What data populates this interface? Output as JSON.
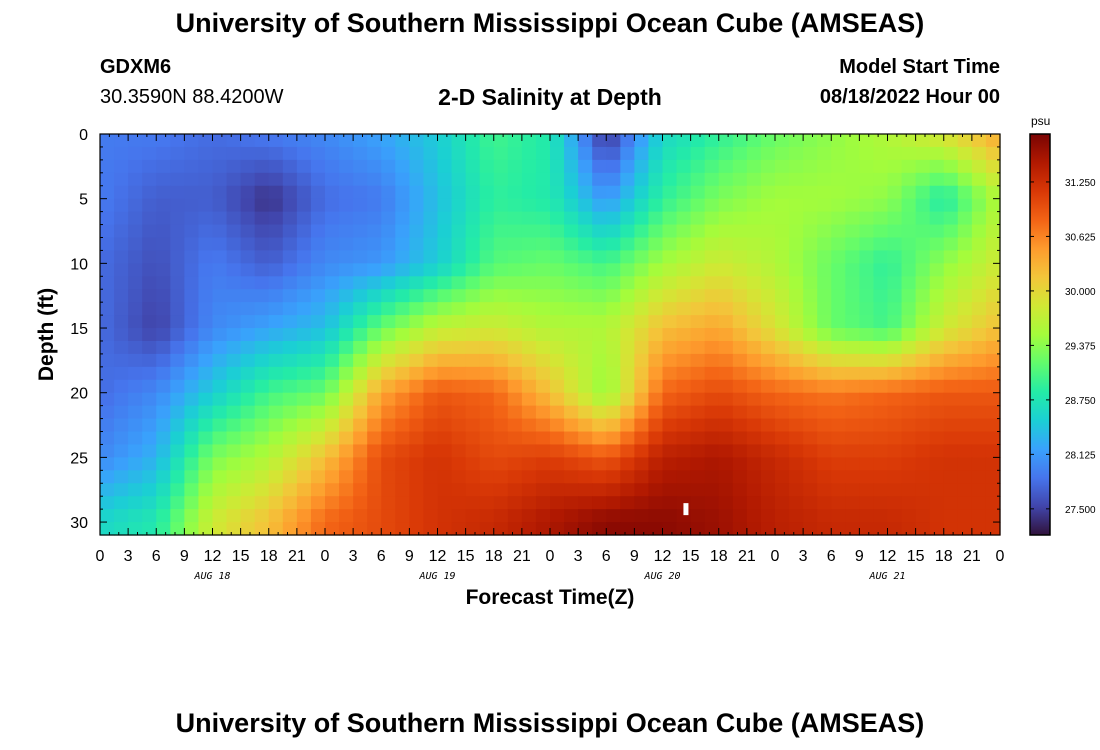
{
  "page": {
    "title_top": "University of Southern Mississippi Ocean Cube (AMSEAS)",
    "title_bottom": "University of Southern Mississippi Ocean Cube (AMSEAS)",
    "station": "GDXM6",
    "coords": "30.3590N  88.4200W",
    "plot_title": "2-D Salinity at Depth",
    "start_label": "Model Start Time",
    "start_value": "08/18/2022 Hour 00"
  },
  "chart_data": {
    "type": "heatmap",
    "title": "2-D Salinity at Depth",
    "xlabel": "Forecast Time(Z)",
    "ylabel": "Depth (ft)",
    "colorbar_unit": "psu",
    "xlim_hours": [
      0,
      96
    ],
    "ylim": [
      0,
      31
    ],
    "y_reversed": true,
    "xticks": [
      "0",
      "3",
      "6",
      "9",
      "12",
      "15",
      "18",
      "21",
      "0",
      "3",
      "6",
      "9",
      "12",
      "15",
      "18",
      "21",
      "0",
      "3",
      "6",
      "9",
      "12",
      "15",
      "18",
      "21",
      "0",
      "3",
      "6",
      "9",
      "12",
      "15",
      "18",
      "21",
      "0"
    ],
    "day_labels": [
      "AUG 18",
      "AUG 19",
      "AUG 20",
      "AUG 21"
    ],
    "yticks": [
      0,
      5,
      10,
      15,
      20,
      25,
      30
    ],
    "colorbar_ticks": [
      "31.250",
      "30.625",
      "30.000",
      "29.375",
      "28.750",
      "28.125",
      "27.500"
    ],
    "colorbar_values": [
      31.25,
      30.625,
      30.0,
      29.375,
      28.75,
      28.125,
      27.5
    ],
    "colorbar_range": [
      27.2,
      31.8
    ],
    "colormap": [
      "#30123b",
      "#4145ab",
      "#4675ed",
      "#39a2fc",
      "#1bcfd4",
      "#24eca6",
      "#61fc6c",
      "#a4fc3b",
      "#d1e834",
      "#f3c63a",
      "#fe9b2d",
      "#f36315",
      "#d93806",
      "#b11901",
      "#7a0403"
    ],
    "x_hours": [
      0,
      6,
      12,
      18,
      24,
      30,
      36,
      42,
      48,
      54,
      60,
      66,
      72,
      78,
      84,
      90,
      96
    ],
    "depths_ft": [
      0,
      5,
      10,
      15,
      20,
      25,
      30
    ],
    "salinity_psu": [
      [
        27.9,
        27.9,
        27.8,
        27.9,
        28.0,
        28.2,
        28.5,
        29.0,
        28.8,
        27.4,
        28.6,
        28.9,
        29.2,
        29.4,
        29.6,
        29.9,
        30.4
      ],
      [
        27.9,
        27.7,
        27.7,
        27.4,
        27.8,
        27.9,
        28.4,
        28.9,
        28.8,
        28.1,
        28.9,
        29.3,
        29.5,
        29.5,
        29.4,
        28.8,
        29.6
      ],
      [
        27.8,
        27.6,
        27.9,
        27.7,
        28.0,
        28.1,
        28.5,
        29.1,
        29.2,
        29.0,
        29.5,
        29.8,
        29.6,
        29.2,
        28.9,
        29.4,
        29.8
      ],
      [
        27.8,
        27.5,
        28.0,
        28.2,
        28.4,
        29.2,
        29.7,
        29.8,
        29.6,
        29.6,
        30.2,
        30.4,
        29.9,
        29.2,
        29.0,
        29.8,
        30.2
      ],
      [
        27.8,
        28.0,
        28.5,
        29.0,
        29.2,
        30.4,
        30.9,
        30.8,
        30.2,
        29.4,
        30.8,
        31.0,
        30.8,
        30.7,
        30.8,
        30.9,
        30.9
      ],
      [
        28.0,
        28.3,
        29.3,
        29.6,
        30.2,
        31.0,
        31.2,
        31.0,
        31.1,
        30.9,
        31.4,
        31.5,
        31.3,
        31.1,
        31.1,
        31.2,
        31.2
      ],
      [
        28.6,
        28.8,
        29.8,
        30.2,
        30.8,
        31.0,
        31.2,
        31.3,
        31.5,
        31.7,
        31.7,
        31.6,
        31.4,
        31.3,
        31.3,
        31.2,
        31.2
      ]
    ],
    "marker": {
      "hour": 62.5,
      "depth_ft": 29
    }
  }
}
